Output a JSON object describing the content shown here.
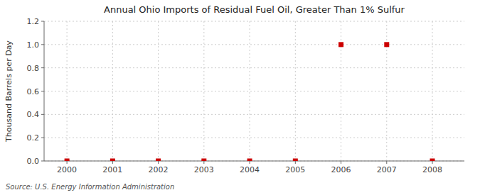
{
  "chart_data": {
    "type": "scatter",
    "title": "Annual Ohio Imports of Residual Fuel Oil, Greater Than 1% Sulfur",
    "ylabel": "Thousand Barrels per Day",
    "source": "Source: U.S. Energy Information Administration",
    "x": [
      2000,
      2001,
      2002,
      2003,
      2004,
      2005,
      2006,
      2007,
      2008
    ],
    "values": [
      0.0,
      0.0,
      0.0,
      0.0,
      0.0,
      0.0,
      1.0,
      1.0,
      0.0
    ],
    "color": "#cc0000",
    "marker": "square",
    "xlim": [
      1999.5,
      2008.7
    ],
    "ylim": [
      0.0,
      1.2
    ],
    "xticks": [
      2000,
      2001,
      2002,
      2003,
      2004,
      2005,
      2006,
      2007,
      2008
    ],
    "yticks": [
      {
        "value": 0.0,
        "label": "0.0"
      },
      0.2,
      0.4,
      0.6,
      0.8,
      {
        "value": 1.0,
        "label": "1.0"
      },
      1.2
    ],
    "grid": true
  }
}
